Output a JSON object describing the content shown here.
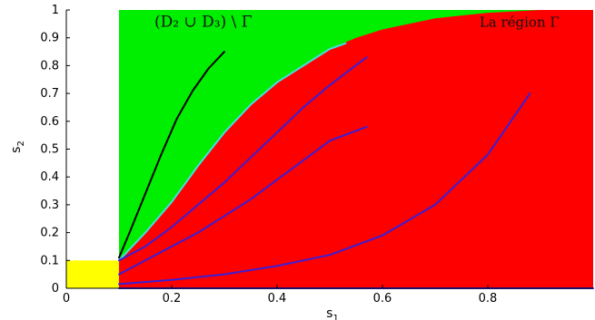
{
  "chart_data": {
    "type": "line",
    "title": "",
    "xlabel": "s",
    "xlabel_sub": "1",
    "ylabel": "s",
    "ylabel_sub": "2",
    "xlim": [
      0,
      1
    ],
    "ylim": [
      0,
      1
    ],
    "x_ticks": [
      0,
      0.2,
      0.4,
      0.6,
      0.8
    ],
    "x_tick_labels": [
      "0",
      "0.2",
      "0.4",
      "0.6",
      "0.8"
    ],
    "y_ticks": [
      0,
      0.1,
      0.2,
      0.3,
      0.4,
      0.5,
      0.6,
      0.7,
      0.8,
      0.9,
      1
    ],
    "y_tick_labels": [
      "0",
      "0.1",
      "0.2",
      "0.3",
      "0.4",
      "0.5",
      "0.6",
      "0.7",
      "0.8",
      "0.9",
      "1"
    ],
    "grid": false,
    "regions": [
      {
        "name": "background-green",
        "color": "#00ee00",
        "x": [
          0.1,
          1.0
        ],
        "y": [
          0.0,
          1.0
        ]
      },
      {
        "name": "yellow-square",
        "color": "#ffff00",
        "x": [
          0.0,
          0.1
        ],
        "y": [
          0.0,
          0.1
        ]
      },
      {
        "name": "gamma-region",
        "color": "#ff0000",
        "polygon": [
          [
            0.1,
            0.0
          ],
          [
            0.1,
            0.1
          ],
          [
            0.15,
            0.2
          ],
          [
            0.2,
            0.31
          ],
          [
            0.25,
            0.44
          ],
          [
            0.3,
            0.56
          ],
          [
            0.35,
            0.66
          ],
          [
            0.4,
            0.74
          ],
          [
            0.45,
            0.8
          ],
          [
            0.5,
            0.86
          ],
          [
            0.55,
            0.9
          ],
          [
            0.6,
            0.93
          ],
          [
            0.7,
            0.97
          ],
          [
            0.8,
            0.99
          ],
          [
            0.9,
            1.0
          ],
          [
            1.0,
            1.0
          ],
          [
            1.0,
            0.0
          ]
        ]
      }
    ],
    "series": [
      {
        "color": "#000000",
        "x": [
          0.1,
          0.12,
          0.15,
          0.18,
          0.21,
          0.24,
          0.27,
          0.3
        ],
        "y": [
          0.11,
          0.2,
          0.34,
          0.48,
          0.61,
          0.71,
          0.79,
          0.85
        ]
      },
      {
        "color": "#40e0e0",
        "x": [
          0.1,
          0.15,
          0.2,
          0.25,
          0.3,
          0.35,
          0.4,
          0.45,
          0.5,
          0.53
        ],
        "y": [
          0.1,
          0.2,
          0.31,
          0.44,
          0.56,
          0.66,
          0.74,
          0.8,
          0.86,
          0.88
        ]
      },
      {
        "color": "#3a1fd6",
        "x": [
          0.1,
          0.15,
          0.2,
          0.25,
          0.3,
          0.35,
          0.4,
          0.45,
          0.5,
          0.57
        ],
        "y": [
          0.1,
          0.15,
          0.22,
          0.3,
          0.38,
          0.47,
          0.56,
          0.65,
          0.73,
          0.83
        ]
      },
      {
        "color": "#3a1fd6",
        "x": [
          0.1,
          0.15,
          0.2,
          0.25,
          0.3,
          0.35,
          0.4,
          0.45,
          0.5,
          0.57
        ],
        "y": [
          0.05,
          0.1,
          0.15,
          0.2,
          0.26,
          0.32,
          0.39,
          0.46,
          0.53,
          0.58
        ]
      },
      {
        "color": "#3a1fd6",
        "x": [
          0.1,
          0.2,
          0.3,
          0.4,
          0.5,
          0.6,
          0.7,
          0.8,
          0.88
        ],
        "y": [
          0.015,
          0.03,
          0.05,
          0.08,
          0.12,
          0.19,
          0.3,
          0.48,
          0.7
        ]
      },
      {
        "color": "#3a1fd6",
        "x": [
          0.1,
          0.3,
          0.6,
          0.9,
          1.0
        ],
        "y": [
          0.0,
          0.0,
          0.0,
          0.0,
          0.0
        ]
      }
    ],
    "annotations": [
      {
        "text": "(D₂ ∪ D₃) \\ Γ",
        "x": 0.26,
        "y": 0.94
      },
      {
        "text": "La région Γ",
        "x": 0.86,
        "y": 0.94
      }
    ]
  }
}
